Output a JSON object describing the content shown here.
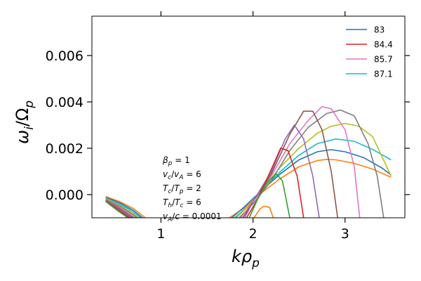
{
  "chart_data": {
    "type": "line",
    "xlabel": "kρ",
    "xlabel_sub": "p",
    "ylabel": "ω/Ω",
    "ylabel_sub_i": "i",
    "ylabel_sub_p": "p",
    "xlim": [
      0.25,
      3.65
    ],
    "ylim": [
      -0.001,
      0.0077
    ],
    "x_ticks": [
      1,
      2,
      3
    ],
    "x_tick_labels": [
      "1",
      "2",
      "3"
    ],
    "y_ticks": [
      0.0,
      0.002,
      0.004,
      0.006
    ],
    "y_tick_labels": [
      "0.000",
      "0.002",
      "0.004",
      "0.006"
    ],
    "grid": false,
    "legend_position": "top-right",
    "legend": [
      {
        "label": "83",
        "color": "#1f77b4"
      },
      {
        "label": "84.4",
        "color": "#d62728"
      },
      {
        "label": "85.7",
        "color": "#e377c2"
      },
      {
        "label": "87.1",
        "color": "#17becf"
      }
    ],
    "annotations": [
      {
        "sym": "β",
        "sub": "p",
        "rest": " = 1"
      },
      {
        "sym": "v",
        "sub": "c",
        "mid": "/v",
        "sub2": "A",
        "rest": " = 6"
      },
      {
        "sym": "T",
        "sub": "c",
        "mid": "/T",
        "sub2": "p",
        "rest": " = 2"
      },
      {
        "sym": "T",
        "sub": "h",
        "mid": "/T",
        "sub2": "c",
        "rest": " = 6"
      },
      {
        "sym": "v",
        "sub": "A",
        "mid": "/c",
        "sub2": "",
        "rest": " = 0.0001"
      }
    ],
    "series": [
      {
        "color": "#ff7f0e",
        "right": [
          [
            1.74,
            -0.001
          ],
          [
            1.9,
            -0.0006
          ],
          [
            2.1,
            0.0001
          ],
          [
            2.3,
            0.0007
          ],
          [
            2.5,
            0.0012
          ],
          [
            2.7,
            0.00147
          ],
          [
            2.8,
            0.00152
          ],
          [
            2.9,
            0.0015
          ],
          [
            3.1,
            0.00135
          ],
          [
            3.3,
            0.0011
          ],
          [
            3.5,
            0.00075
          ]
        ]
      },
      {
        "color": "#1f77b4",
        "right": [
          [
            1.77,
            -0.001
          ],
          [
            1.9,
            -0.00055
          ],
          [
            2.1,
            0.0002
          ],
          [
            2.3,
            0.0009
          ],
          [
            2.5,
            0.0015
          ],
          [
            2.7,
            0.00185
          ],
          [
            2.85,
            0.00194
          ],
          [
            3.0,
            0.00185
          ],
          [
            3.2,
            0.0016
          ],
          [
            3.4,
            0.00115
          ],
          [
            3.5,
            0.00085
          ]
        ]
      },
      {
        "color": "#17becf",
        "right": [
          [
            1.8,
            -0.001
          ],
          [
            1.95,
            -0.0005
          ],
          [
            2.1,
            0.0002
          ],
          [
            2.3,
            0.001
          ],
          [
            2.5,
            0.0017
          ],
          [
            2.7,
            0.0022
          ],
          [
            2.9,
            0.0024
          ],
          [
            3.1,
            0.0023
          ],
          [
            3.3,
            0.00195
          ],
          [
            3.5,
            0.0015
          ]
        ]
      },
      {
        "color": "#bcbd22",
        "right": [
          [
            1.82,
            -0.001
          ],
          [
            1.95,
            -0.0005
          ],
          [
            2.1,
            0.0002
          ],
          [
            2.3,
            0.0012
          ],
          [
            2.5,
            0.002
          ],
          [
            2.7,
            0.00265
          ],
          [
            2.85,
            0.00295
          ],
          [
            3.0,
            0.00307
          ],
          [
            3.15,
            0.00295
          ],
          [
            3.3,
            0.0025
          ],
          [
            3.5,
            0.0008
          ]
        ]
      },
      {
        "color": "#7f7f7f",
        "right": [
          [
            1.85,
            -0.001
          ],
          [
            2.0,
            -0.0004
          ],
          [
            2.2,
            0.0006
          ],
          [
            2.4,
            0.0019
          ],
          [
            2.6,
            0.0029
          ],
          [
            2.8,
            0.0035
          ],
          [
            2.95,
            0.00365
          ],
          [
            3.1,
            0.0034
          ],
          [
            3.25,
            0.0022
          ],
          [
            3.35,
            0.0008
          ],
          [
            3.42,
            -0.001
          ]
        ]
      },
      {
        "color": "#e377c2",
        "right": [
          [
            1.87,
            -0.001
          ],
          [
            2.0,
            -0.0003
          ],
          [
            2.2,
            0.0008
          ],
          [
            2.4,
            0.0022
          ],
          [
            2.6,
            0.0032
          ],
          [
            2.75,
            0.0038
          ],
          [
            2.85,
            0.0037
          ],
          [
            3.0,
            0.0028
          ],
          [
            3.1,
            0.0012
          ],
          [
            3.16,
            -0.001
          ]
        ]
      },
      {
        "color": "#8c564b",
        "right": [
          [
            1.89,
            -0.001
          ],
          [
            2.0,
            -0.0003
          ],
          [
            2.2,
            0.0009
          ],
          [
            2.4,
            0.0026
          ],
          [
            2.55,
            0.0036
          ],
          [
            2.65,
            0.0036
          ],
          [
            2.75,
            0.0028
          ],
          [
            2.85,
            0.001
          ],
          [
            2.92,
            -0.001
          ]
        ]
      },
      {
        "color": "#9467bd",
        "right": [
          [
            1.91,
            -0.001
          ],
          [
            2.0,
            -0.0003
          ],
          [
            2.2,
            0.001
          ],
          [
            2.35,
            0.0024
          ],
          [
            2.45,
            0.003
          ],
          [
            2.55,
            0.0024
          ],
          [
            2.65,
            0.0008
          ],
          [
            2.72,
            -0.001
          ]
        ]
      },
      {
        "color": "#d62728",
        "right": [
          [
            1.93,
            -0.001
          ],
          [
            2.05,
            -0.0002
          ],
          [
            2.2,
            0.0011
          ],
          [
            2.3,
            0.002
          ],
          [
            2.38,
            0.0019
          ],
          [
            2.48,
            0.0008
          ],
          [
            2.55,
            -0.001
          ]
        ]
      },
      {
        "color": "#2ca02c",
        "right": [
          [
            1.96,
            -0.001
          ],
          [
            2.05,
            -0.0002
          ],
          [
            2.15,
            0.0005
          ],
          [
            2.25,
            0.0009
          ],
          [
            2.32,
            0.0006
          ],
          [
            2.4,
            -0.001
          ]
        ]
      },
      {
        "color": "#ff7f0e",
        "right": [
          [
            2.01,
            -0.001
          ],
          [
            2.08,
            -0.0006
          ],
          [
            2.12,
            -0.0005
          ],
          [
            2.18,
            -0.00055
          ],
          [
            2.22,
            -0.001
          ]
        ]
      }
    ],
    "left_series": [
      {
        "color": "#ff7f0e",
        "points": [
          [
            0.4,
            -8e-05
          ],
          [
            0.55,
            -0.0003
          ],
          [
            0.7,
            -0.0006
          ],
          [
            0.83,
            -0.001
          ]
        ]
      },
      {
        "color": "#1f77b4",
        "points": [
          [
            0.4,
            -0.00012
          ],
          [
            0.55,
            -0.00035
          ],
          [
            0.7,
            -0.00068
          ],
          [
            0.8,
            -0.001
          ]
        ]
      },
      {
        "color": "#17becf",
        "points": [
          [
            0.4,
            -0.00015
          ],
          [
            0.55,
            -0.0004
          ],
          [
            0.7,
            -0.00075
          ],
          [
            0.78,
            -0.001
          ]
        ]
      },
      {
        "color": "#bcbd22",
        "points": [
          [
            0.4,
            -0.00018
          ],
          [
            0.55,
            -0.00045
          ],
          [
            0.7,
            -0.00082
          ],
          [
            0.76,
            -0.001
          ]
        ]
      },
      {
        "color": "#7f7f7f",
        "points": [
          [
            0.4,
            -0.0002
          ],
          [
            0.55,
            -0.0005
          ],
          [
            0.7,
            -0.00088
          ],
          [
            0.74,
            -0.001
          ]
        ]
      },
      {
        "color": "#e377c2",
        "points": [
          [
            0.4,
            -0.00022
          ],
          [
            0.55,
            -0.00055
          ],
          [
            0.72,
            -0.001
          ]
        ]
      },
      {
        "color": "#8c564b",
        "points": [
          [
            0.4,
            -0.00024
          ],
          [
            0.55,
            -0.0006
          ],
          [
            0.7,
            -0.001
          ]
        ]
      },
      {
        "color": "#9467bd",
        "points": [
          [
            0.4,
            -0.00026
          ],
          [
            0.55,
            -0.00065
          ],
          [
            0.68,
            -0.001
          ]
        ]
      },
      {
        "color": "#d62728",
        "points": [
          [
            0.4,
            -0.00028
          ],
          [
            0.55,
            -0.0007
          ],
          [
            0.66,
            -0.001
          ]
        ]
      },
      {
        "color": "#2ca02c",
        "points": [
          [
            0.4,
            -0.0003
          ],
          [
            0.55,
            -0.00075
          ],
          [
            0.64,
            -0.001
          ]
        ]
      }
    ]
  }
}
